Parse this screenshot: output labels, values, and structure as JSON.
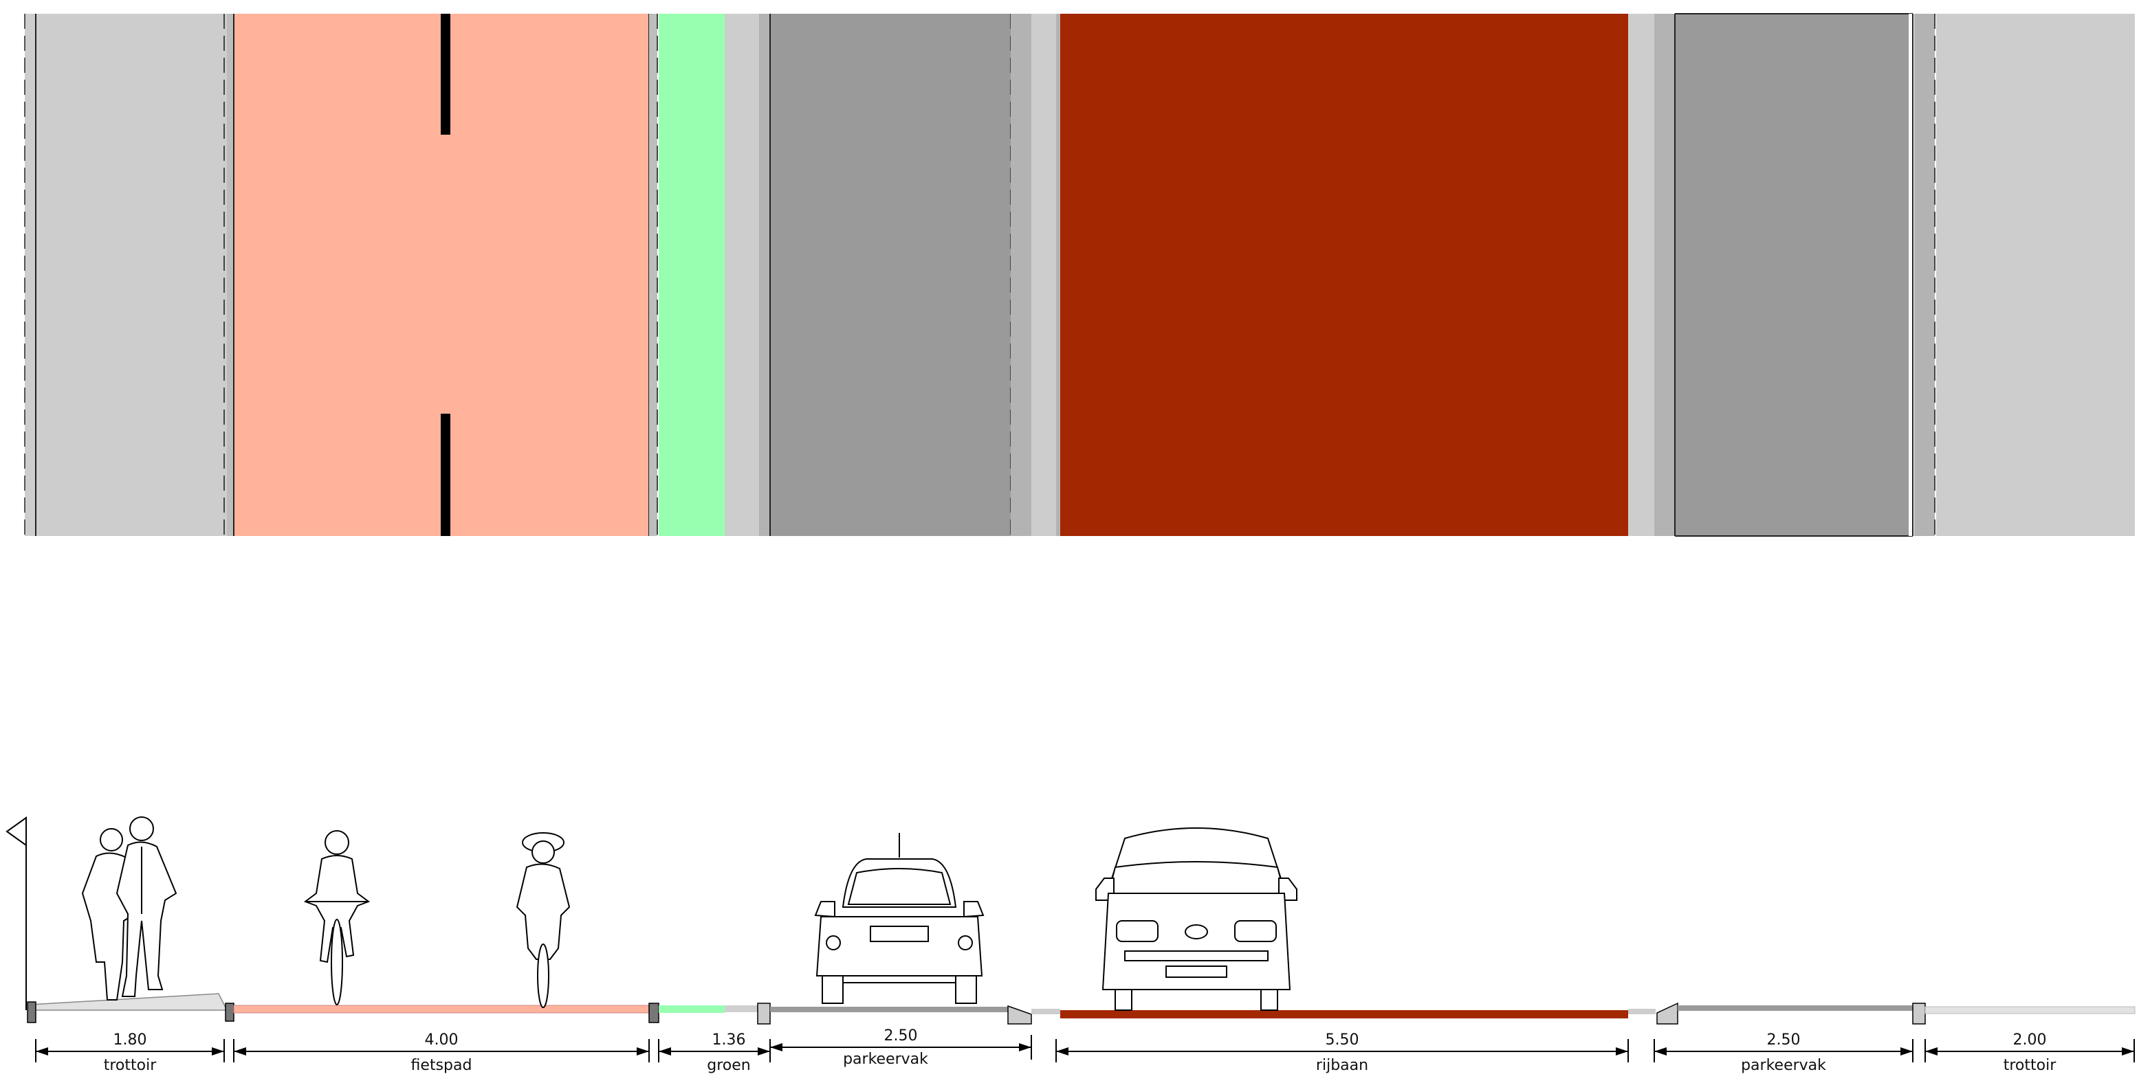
{
  "colors": {
    "trottoir": "#cdcdcd",
    "trottoir_edge": "#bdbdbd",
    "fietspad": "#ffb39b",
    "groen": "#98ffb1",
    "parkeervak": "#9a9a9a",
    "rijbaan": "#a32700",
    "lines": "#000000"
  },
  "sections": [
    {
      "id": "trottoir-left",
      "value": "1.80",
      "label": "trottoir"
    },
    {
      "id": "fietspad",
      "value": "4.00",
      "label": "fietspad"
    },
    {
      "id": "groen",
      "value": "1.36",
      "label": "groen"
    },
    {
      "id": "parkeervak-left",
      "value": "2.50",
      "label": "parkeervak"
    },
    {
      "id": "rijbaan",
      "value": "5.50",
      "label": "rijbaan"
    },
    {
      "id": "parkeervak-right",
      "value": "2.50",
      "label": "parkeervak"
    },
    {
      "id": "trottoir-right",
      "value": "2.00",
      "label": "trottoir"
    }
  ],
  "figures": {
    "pedestrians": "pedestrian-couple",
    "cyclist_front": "cyclist",
    "cyclist_back": "cyclist",
    "car_small": "hatchback-car",
    "car_van": "van",
    "level_marker": "level-triangle-icon"
  }
}
